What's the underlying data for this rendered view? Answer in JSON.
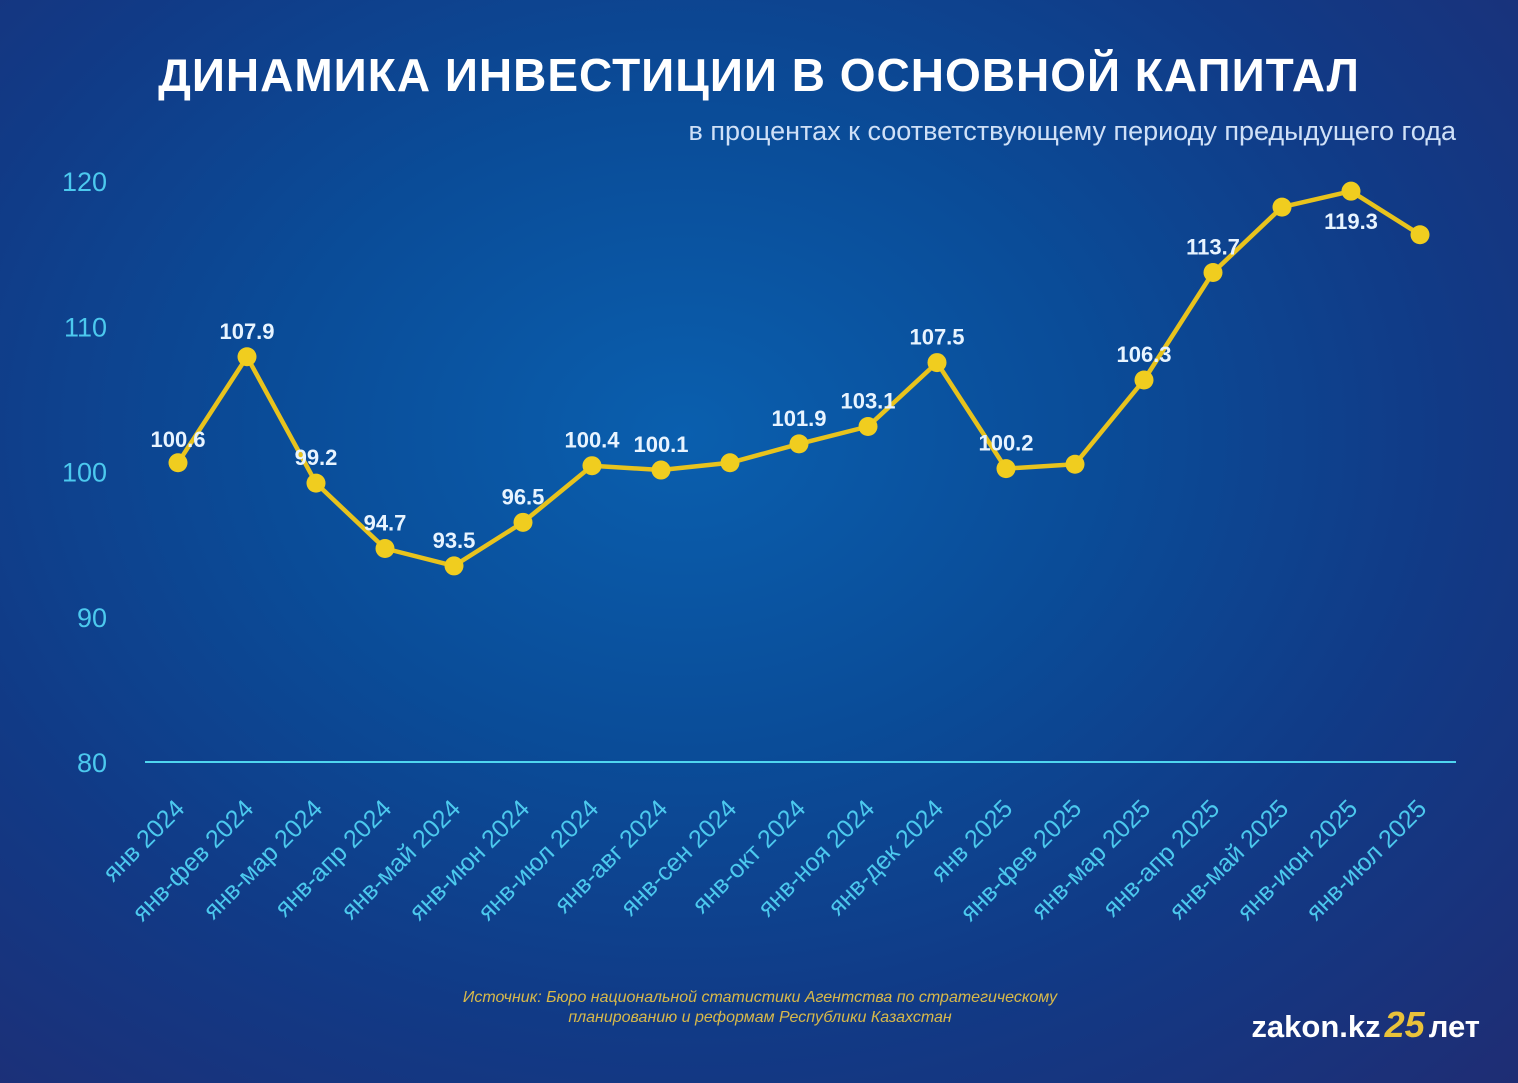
{
  "title": "ДИНАМИКА ИНВЕСТИЦИИ В ОСНОВНОЙ КАПИТАЛ",
  "subtitle": "в процентах к соответствующему периоду предыдущего года",
  "source_line1": "Источник: Бюро национальной статистики Агентства по стратегическому",
  "source_line2": "планированию и реформам Республики Казахстан",
  "logo": {
    "site": "zakon.kz",
    "number": "25",
    "suffix": "лет"
  },
  "colors": {
    "line": "#e8c31d",
    "marker": "#f0cd1f",
    "axis": "#4fd6f0",
    "tick_text": "#4cc9ee",
    "label_text": "#e8f4ff"
  },
  "chart_data": {
    "type": "line",
    "categories": [
      "янв 2024",
      "янв-фев 2024",
      "янв-мар 2024",
      "янв-апр 2024",
      "янв-май 2024",
      "янв-июн 2024",
      "янв-июл 2024",
      "янв-авг 2024",
      "янв-сен 2024",
      "янв-окт 2024",
      "янв-ноя 2024",
      "янв-дек 2024",
      "янв 2025",
      "янв-фев 2025",
      "янв-мар 2025",
      "янв-апр 2025",
      "янв-май 2025",
      "янв-июн 2025",
      "янв-июл 2025"
    ],
    "series": [
      {
        "values": [
          100.6,
          107.9,
          99.2,
          94.7,
          93.5,
          96.5,
          100.4,
          100.1,
          100.6,
          101.9,
          103.1,
          107.5,
          100.2,
          100.5,
          106.3,
          113.7,
          118.2,
          119.3,
          116.3
        ],
        "labels": [
          "100.6",
          "107.9",
          "99.2",
          "94.7",
          "93.5",
          "96.5",
          "100.4",
          "100.1",
          "",
          "101.9",
          "103.1",
          "107.5",
          "100.2",
          "",
          "106.3",
          "113.7",
          "",
          "119.3",
          ""
        ]
      }
    ],
    "yticks": [
      80,
      90,
      100,
      110,
      120
    ],
    "ylim": [
      80,
      120
    ],
    "grid": false
  }
}
